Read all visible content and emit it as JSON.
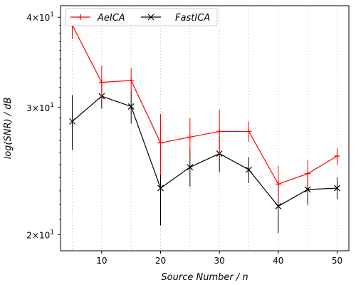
{
  "chart_data": {
    "type": "line",
    "title": "",
    "xlabel": "Source Number / n",
    "ylabel": "log(SNR) / dB",
    "yscale": "log",
    "xlim": [
      3,
      52
    ],
    "ylim": [
      19,
      41.5
    ],
    "xticks": [
      10,
      20,
      30,
      40,
      50
    ],
    "xtick_labels": [
      "10",
      "20",
      "30",
      "40",
      "50"
    ],
    "yticks": [
      20,
      30,
      40
    ],
    "ytick_base": "10",
    "ytick_exponent": "1",
    "ytick_mantissas": [
      "2",
      "3",
      "4"
    ],
    "grid": "x-dotted",
    "legend_placement": "top-left",
    "x": [
      5,
      10,
      15,
      20,
      25,
      30,
      35,
      40,
      45,
      50
    ],
    "series": [
      {
        "name": "AeICA",
        "color": "#ff0000",
        "marker": "plus",
        "values": [
          39.0,
          32.5,
          32.7,
          26.8,
          27.3,
          27.8,
          27.8,
          23.5,
          24.3,
          25.7
        ],
        "err": [
          1.7,
          1.8,
          1.3,
          2.6,
          1.7,
          2.0,
          0.9,
          1.4,
          1.1,
          0.7
        ]
      },
      {
        "name": "FastICA",
        "color": "#000000",
        "marker": "x",
        "values": [
          28.7,
          31.1,
          30.1,
          23.2,
          24.8,
          25.9,
          24.6,
          21.9,
          23.1,
          23.2
        ],
        "err": [
          2.5,
          1.2,
          1.6,
          2.6,
          1.5,
          1.5,
          1.0,
          1.8,
          1.1,
          0.8
        ]
      }
    ]
  }
}
